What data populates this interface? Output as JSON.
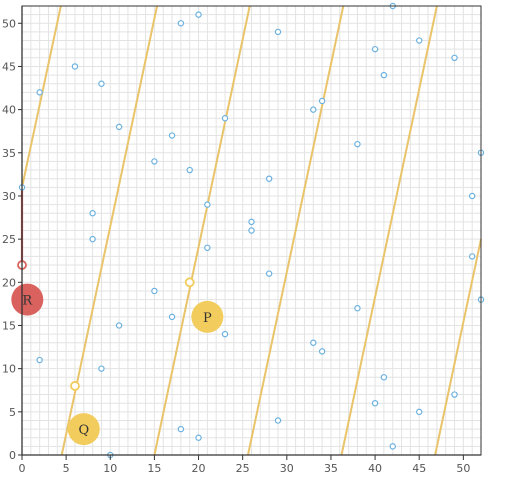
{
  "chart_data": {
    "type": "scatter",
    "xlim": [
      0,
      52
    ],
    "ylim": [
      0,
      52
    ],
    "x_ticks": [
      0,
      5,
      10,
      15,
      20,
      25,
      30,
      35,
      40,
      45,
      50
    ],
    "y_ticks": [
      0,
      5,
      10,
      15,
      20,
      25,
      30,
      35,
      40,
      45,
      50
    ],
    "grid": true,
    "colors": {
      "line": "#e9c46a",
      "points": "#6ab0e0",
      "badge_gold": "#f2cc5c",
      "badge_red": "#d9625f",
      "segment_red": "#d9625f"
    },
    "series": [
      {
        "values": [
          [
            0,
            31
          ],
          [
            2,
            42
          ],
          [
            2,
            11
          ],
          [
            6,
            45
          ],
          [
            8,
            28
          ],
          [
            8,
            25
          ],
          [
            9,
            43
          ],
          [
            9,
            10
          ],
          [
            10,
            0
          ],
          [
            11,
            38
          ],
          [
            11,
            15
          ],
          [
            15,
            34
          ],
          [
            15,
            19
          ],
          [
            17,
            37
          ],
          [
            17,
            16
          ],
          [
            18,
            50
          ],
          [
            18,
            3
          ],
          [
            19,
            33
          ],
          [
            20,
            51
          ],
          [
            20,
            2
          ],
          [
            21,
            29
          ],
          [
            21,
            24
          ],
          [
            23,
            39
          ],
          [
            23,
            14
          ],
          [
            26,
            27
          ],
          [
            26,
            26
          ],
          [
            28,
            32
          ],
          [
            28,
            21
          ],
          [
            29,
            49
          ],
          [
            29,
            4
          ],
          [
            33,
            40
          ],
          [
            33,
            13
          ],
          [
            34,
            41
          ],
          [
            34,
            12
          ],
          [
            38,
            36
          ],
          [
            38,
            17
          ],
          [
            40,
            47
          ],
          [
            40,
            6
          ],
          [
            41,
            44
          ],
          [
            41,
            9
          ],
          [
            42,
            52
          ],
          [
            42,
            1
          ],
          [
            45,
            48
          ],
          [
            45,
            5
          ],
          [
            49,
            46
          ],
          [
            49,
            7
          ],
          [
            51,
            30
          ],
          [
            51,
            23
          ],
          [
            52,
            35
          ],
          [
            52,
            18
          ]
        ]
      }
    ],
    "lines": [
      {
        "x1": 0,
        "y1": 31,
        "x2": 4.4,
        "y2": 52
      },
      {
        "x1": 4.5,
        "y1": 0,
        "x2": 15.3,
        "y2": 52
      },
      {
        "x1": 15.0,
        "y1": 0,
        "x2": 25.8,
        "y2": 52
      },
      {
        "x1": 25.6,
        "y1": 0,
        "x2": 36.4,
        "y2": 52
      },
      {
        "x1": 36.2,
        "y1": 0,
        "x2": 47.0,
        "y2": 52
      },
      {
        "x1": 46.8,
        "y1": 0,
        "x2": 52,
        "y2": 25
      }
    ],
    "segment": {
      "x1": 0,
      "y1": 22,
      "x2": 0,
      "y2": 31
    },
    "open_markers": [
      {
        "x": 0,
        "y": 22,
        "color": "red"
      },
      {
        "x": 6,
        "y": 8,
        "color": "gold"
      },
      {
        "x": 19,
        "y": 20,
        "color": "gold"
      }
    ],
    "badges": [
      {
        "label": "R",
        "x": 0.6,
        "y": 18,
        "color": "red"
      },
      {
        "label": "P",
        "x": 21,
        "y": 16,
        "color": "gold"
      },
      {
        "label": "Q",
        "x": 7,
        "y": 3,
        "color": "gold"
      }
    ]
  }
}
